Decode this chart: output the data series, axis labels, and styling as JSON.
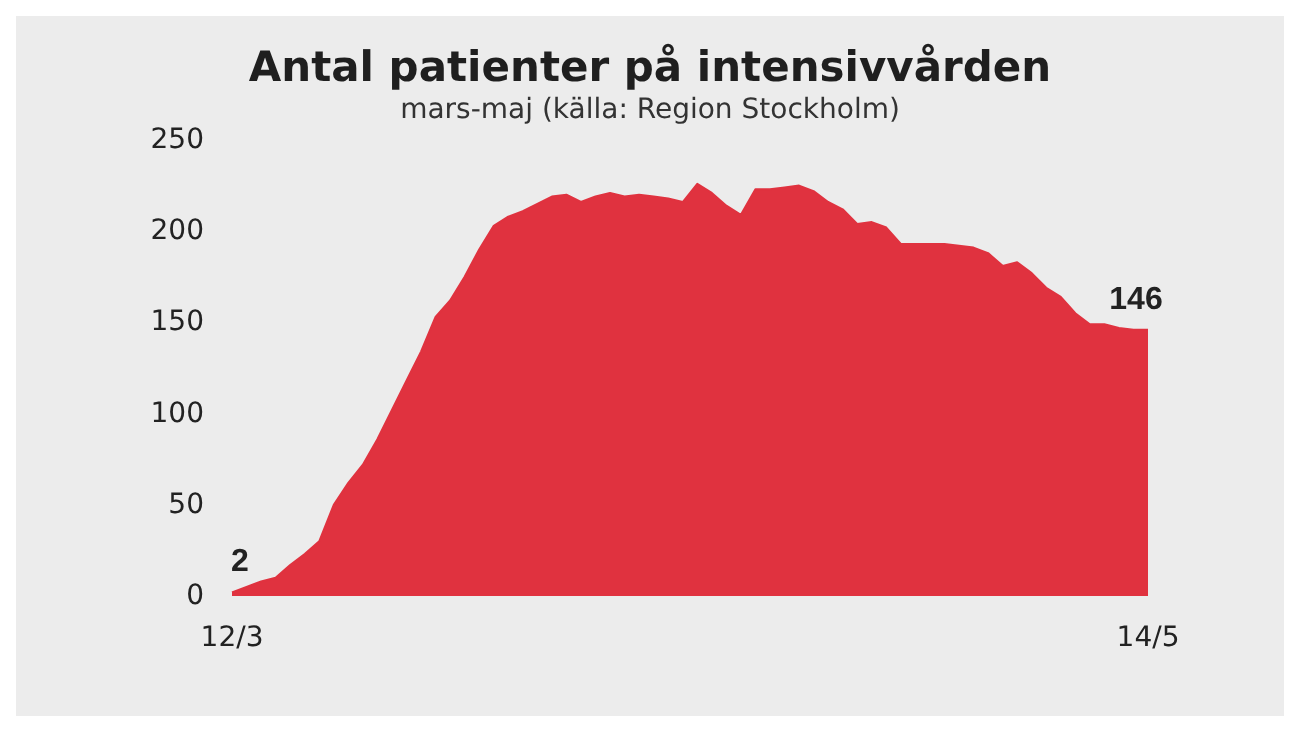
{
  "chart_data": {
    "type": "area",
    "title": "Antal patienter på intensivvården",
    "subtitle": "mars-maj (källa: Region Stockholm)",
    "categories": [
      "12/3",
      null,
      null,
      null,
      null,
      null,
      null,
      null,
      null,
      null,
      null,
      null,
      null,
      null,
      null,
      null,
      null,
      null,
      null,
      null,
      null,
      null,
      null,
      null,
      null,
      null,
      null,
      null,
      null,
      null,
      null,
      null,
      null,
      null,
      null,
      null,
      null,
      null,
      null,
      null,
      null,
      null,
      null,
      null,
      null,
      null,
      null,
      null,
      null,
      null,
      null,
      null,
      null,
      null,
      null,
      null,
      null,
      null,
      null,
      null,
      null,
      null,
      null,
      "14/5"
    ],
    "values": [
      2,
      5,
      8,
      10,
      17,
      23,
      30,
      50,
      62,
      72,
      86,
      102,
      118,
      134,
      153,
      162,
      175,
      190,
      203,
      208,
      211,
      215,
      219,
      220,
      216,
      219,
      221,
      219,
      220,
      219,
      218,
      216,
      226,
      221,
      214,
      209,
      223,
      223,
      224,
      225,
      222,
      216,
      212,
      204,
      205,
      202,
      193,
      193,
      193,
      193,
      192,
      191,
      188,
      181,
      183,
      177,
      169,
      164,
      155,
      149,
      149,
      147,
      146,
      146
    ],
    "value_labels": [
      "2",
      null,
      null,
      null,
      null,
      null,
      null,
      null,
      null,
      null,
      null,
      null,
      null,
      null,
      null,
      null,
      null,
      null,
      null,
      null,
      null,
      null,
      null,
      null,
      null,
      null,
      null,
      null,
      null,
      null,
      null,
      null,
      null,
      null,
      null,
      null,
      null,
      null,
      null,
      null,
      null,
      null,
      null,
      null,
      null,
      null,
      null,
      null,
      null,
      null,
      null,
      null,
      null,
      null,
      null,
      null,
      null,
      null,
      null,
      null,
      null,
      null,
      null,
      "146"
    ],
    "color": "#e0323f",
    "ylim": [
      0,
      250
    ],
    "yticks": [
      0,
      50,
      100,
      150,
      200,
      250
    ],
    "grid": false,
    "marker": "none"
  }
}
